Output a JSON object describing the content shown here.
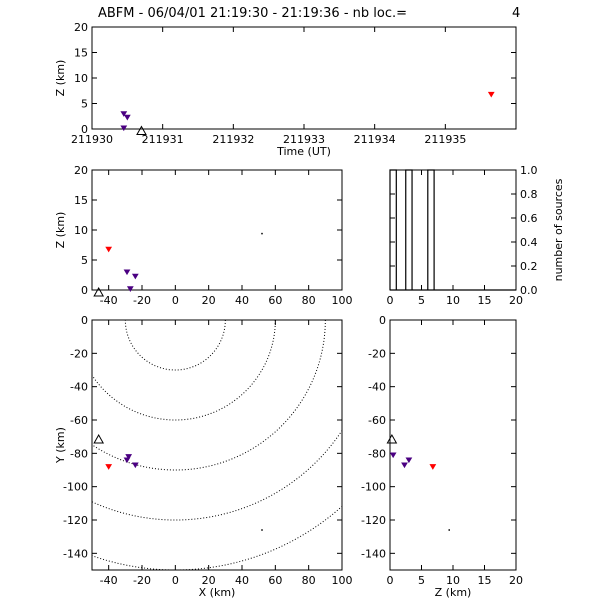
{
  "figure": {
    "title": "ABFM - 06/04/01 21:19:30 - 21:19:36 - nb loc.=",
    "count": "4"
  },
  "colors": {
    "axis": "#000000",
    "late_source": "#ff0000",
    "early_source": "#4b0082",
    "contour": "#000000"
  },
  "chart_data": [
    {
      "id": "time-height",
      "type": "scatter",
      "xlabel": "Time (UT)",
      "ylabel": "Z (km)",
      "xlim": [
        211930,
        211936
      ],
      "ylim": [
        0,
        20
      ],
      "xticks": [
        "211930",
        "211931",
        "211932",
        "211933",
        "211934",
        "211935"
      ],
      "xtick_values": [
        211930,
        211931,
        211932,
        211933,
        211934,
        211935
      ],
      "yticks": [
        "0",
        "5",
        "10",
        "15",
        "20"
      ],
      "ytick_values": [
        0,
        5,
        10,
        15,
        20
      ],
      "points": [
        {
          "x": 211930.45,
          "y": 3.0,
          "color": "#4b0082"
        },
        {
          "x": 211930.5,
          "y": 2.3,
          "color": "#4b0082"
        },
        {
          "x": 211930.45,
          "y": 0.2,
          "color": "#4b0082"
        },
        {
          "x": 211935.65,
          "y": 6.8,
          "color": "#ff0000"
        }
      ],
      "station": {
        "x": 211930.7,
        "y": -0.5
      }
    },
    {
      "id": "x-height",
      "type": "scatter",
      "xlabel": "",
      "ylabel": "Z (km)",
      "xlim": [
        -50,
        100
      ],
      "ylim": [
        0,
        20
      ],
      "xticks": [
        "-40",
        "-20",
        "0",
        "20",
        "40",
        "60",
        "80",
        "100"
      ],
      "xtick_values": [
        -40,
        -20,
        0,
        20,
        40,
        60,
        80,
        100
      ],
      "yticks": [
        "0",
        "5",
        "10",
        "15",
        "20"
      ],
      "ytick_values": [
        0,
        5,
        10,
        15,
        20
      ],
      "points": [
        {
          "x": -40,
          "y": 6.8,
          "color": "#ff0000"
        },
        {
          "x": -29,
          "y": 3.0,
          "color": "#4b0082"
        },
        {
          "x": -24,
          "y": 2.3,
          "color": "#4b0082"
        },
        {
          "x": -27,
          "y": 0.2,
          "color": "#4b0082"
        }
      ],
      "station": {
        "x": -46,
        "y": -0.5
      },
      "reference_point": {
        "x": 52,
        "y": 9.4
      }
    },
    {
      "id": "source-histogram",
      "type": "bar",
      "xlabel": "",
      "ylabel": "number of sources",
      "xlim": [
        0,
        20
      ],
      "ylim": [
        0,
        1
      ],
      "xticks": [
        "0",
        "5",
        "10",
        "15",
        "20"
      ],
      "xtick_values": [
        0,
        5,
        10,
        15,
        20
      ],
      "yticks": [
        "0.0",
        "0.2",
        "0.4",
        "0.6",
        "0.8",
        "1.0"
      ],
      "ytick_values": [
        0,
        0.2,
        0.4,
        0.6,
        0.8,
        1.0
      ],
      "bars": [
        {
          "x0": 0,
          "x1": 1,
          "value": 1
        },
        {
          "x0": 2.5,
          "x1": 3.5,
          "value": 1
        },
        {
          "x0": 6,
          "x1": 7,
          "value": 1
        }
      ]
    },
    {
      "id": "plan-view",
      "type": "scatter",
      "xlabel": "X (km)",
      "ylabel": "Y (km)",
      "xlim": [
        -50,
        100
      ],
      "ylim": [
        -150,
        0
      ],
      "xticks": [
        "-40",
        "-20",
        "0",
        "20",
        "40",
        "60",
        "80",
        "100"
      ],
      "xtick_values": [
        -40,
        -20,
        0,
        20,
        40,
        60,
        80,
        100
      ],
      "yticks": [
        "0",
        "-20",
        "-40",
        "-60",
        "-80",
        "-100",
        "-120",
        "-140"
      ],
      "ytick_values": [
        0,
        -20,
        -40,
        -60,
        -80,
        -100,
        -120,
        -140
      ],
      "contour_center": {
        "x": 0,
        "y": 0
      },
      "contour_radii": [
        30,
        60,
        90,
        120,
        150
      ],
      "points": [
        {
          "x": -40,
          "y": -88,
          "color": "#ff0000"
        },
        {
          "x": -28,
          "y": -82,
          "color": "#4b0082"
        },
        {
          "x": -29,
          "y": -84,
          "color": "#4b0082"
        },
        {
          "x": -24,
          "y": -87,
          "color": "#4b0082"
        }
      ],
      "station": {
        "x": -46,
        "y": -72
      },
      "reference_point": {
        "x": 52,
        "y": -126
      }
    },
    {
      "id": "z-y-view",
      "type": "scatter",
      "xlabel": "Z (km)",
      "ylabel": "",
      "xlim": [
        0,
        20
      ],
      "ylim": [
        -150,
        0
      ],
      "xticks": [
        "0",
        "5",
        "10",
        "15",
        "20"
      ],
      "xtick_values": [
        0,
        5,
        10,
        15,
        20
      ],
      "yticks": [
        "0",
        "-20",
        "-40",
        "-60",
        "-80",
        "-100",
        "-120",
        "-140"
      ],
      "ytick_values": [
        0,
        -20,
        -40,
        -60,
        -80,
        -100,
        -120,
        -140
      ],
      "points": [
        {
          "x": 6.8,
          "y": -88,
          "color": "#ff0000"
        },
        {
          "x": 3.0,
          "y": -84,
          "color": "#4b0082"
        },
        {
          "x": 2.3,
          "y": -87,
          "color": "#4b0082"
        },
        {
          "x": 0.5,
          "y": -81,
          "color": "#4b0082"
        }
      ],
      "station": {
        "x": 0.3,
        "y": -72
      },
      "reference_point": {
        "x": 9.4,
        "y": -126
      }
    }
  ]
}
